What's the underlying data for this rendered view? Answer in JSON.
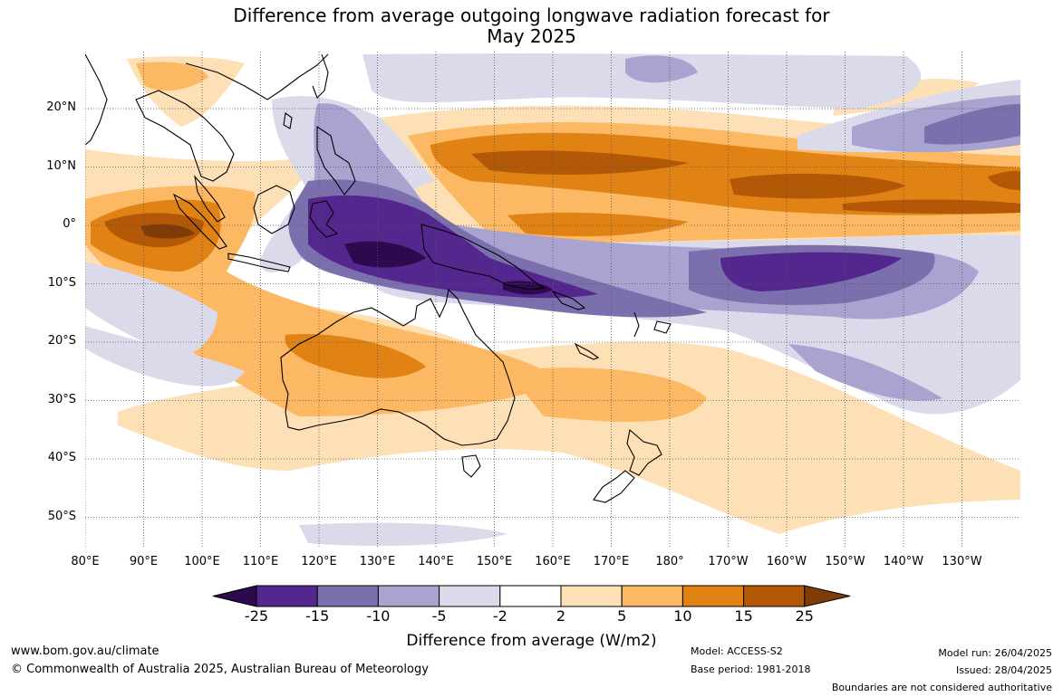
{
  "title": {
    "line1": "Difference from average outgoing longwave radiation forecast for",
    "line2": "May 2025"
  },
  "axes": {
    "lon_labels": [
      "80°E",
      "90°E",
      "100°E",
      "110°E",
      "120°E",
      "130°E",
      "140°E",
      "150°E",
      "160°E",
      "170°E",
      "180°",
      "170°W",
      "160°W",
      "150°W",
      "140°W",
      "130°W"
    ],
    "lat_labels": [
      "20°N",
      "10°N",
      "0°",
      "10°S",
      "20°S",
      "30°S",
      "40°S",
      "50°S"
    ]
  },
  "colorbar": {
    "ticks": [
      "-25",
      "-15",
      "-10",
      "-5",
      "-2",
      "2",
      "5",
      "10",
      "15",
      "25"
    ],
    "colors": [
      "#2d0a4e",
      "#54278f",
      "#7b6fad",
      "#a8a3cf",
      "#dadaeb",
      "#ffffff",
      "#fee0b6",
      "#fdb863",
      "#e08214",
      "#b35806",
      "#7f3b08"
    ],
    "label": "Difference from average (W/m2)"
  },
  "footer": {
    "website": "www.bom.gov.au/climate",
    "copyright": "© Commonwealth of Australia 2025, Australian Bureau of Meteorology",
    "model": "Model: ACCESS-S2",
    "base_period": "Base period: 1981-2018",
    "model_run": "Model run: 26/04/2025",
    "issued": "Issued: 28/04/2025",
    "disclaimer": "Boundaries are not considered authoritative"
  }
}
